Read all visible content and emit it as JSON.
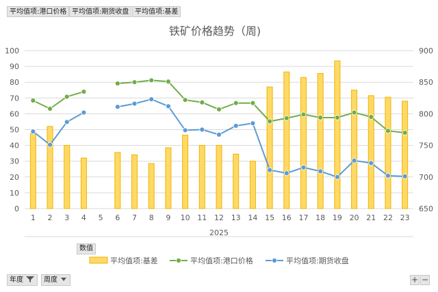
{
  "field_buttons": [
    "平均值项:港口价格",
    "平均值项:期货收盘",
    "平均值项:基差"
  ],
  "values_button": "数值",
  "filters": [
    {
      "label": "年度",
      "icon": "filter-icon"
    },
    {
      "label": "周度",
      "icon": "dropdown-arrow-icon"
    }
  ],
  "zoom": {
    "plus": "+",
    "minus": "−"
  },
  "colors": {
    "bar_fill": "#ffd966",
    "bar_stroke": "#f0b400",
    "port_price": "#70ad47",
    "futures_close": "#5b9bd5",
    "grid": "#d9d9d9"
  },
  "chart_data": {
    "type": "bar",
    "title": "铁矿价格趋势（周)",
    "xlabel": "2025",
    "categories": [
      "1",
      "2",
      "3",
      "4",
      "5",
      "6",
      "7",
      "8",
      "9",
      "10",
      "11",
      "12",
      "13",
      "14",
      "15",
      "16",
      "17",
      "18",
      "19",
      "20",
      "21",
      "22",
      "23"
    ],
    "left_axis": {
      "ylim": [
        0,
        100
      ],
      "ticks": [
        0,
        10,
        20,
        30,
        40,
        50,
        60,
        70,
        80,
        90,
        100
      ]
    },
    "right_axis": {
      "ylim": [
        650,
        900
      ],
      "ticks": [
        650,
        700,
        750,
        800,
        850,
        900
      ]
    },
    "grid": true,
    "legend_position": "bottom",
    "series": [
      {
        "name": "平均值项:基差",
        "type": "bar",
        "axis": "left",
        "values": [
          47.5,
          52,
          40,
          32,
          null,
          35.5,
          34,
          28.5,
          38.5,
          46.5,
          40,
          40,
          34.5,
          30,
          77,
          86.5,
          83,
          85.5,
          93.5,
          75,
          71.5,
          70.5,
          68
        ]
      },
      {
        "name": "平均值项:港口价格",
        "type": "line",
        "axis": "right",
        "values": [
          821,
          808,
          827,
          835,
          null,
          848,
          850,
          853,
          851,
          822,
          818,
          807,
          817,
          817,
          788,
          793,
          799,
          794,
          794,
          802,
          795,
          773,
          770
        ]
      },
      {
        "name": "平均值项:期货收盘",
        "type": "line",
        "axis": "right",
        "values": [
          772,
          751,
          787,
          802,
          null,
          811,
          816,
          823,
          812,
          774,
          775,
          767,
          781,
          785,
          711,
          706,
          715,
          709,
          700,
          726,
          722,
          702,
          701
        ]
      }
    ]
  }
}
